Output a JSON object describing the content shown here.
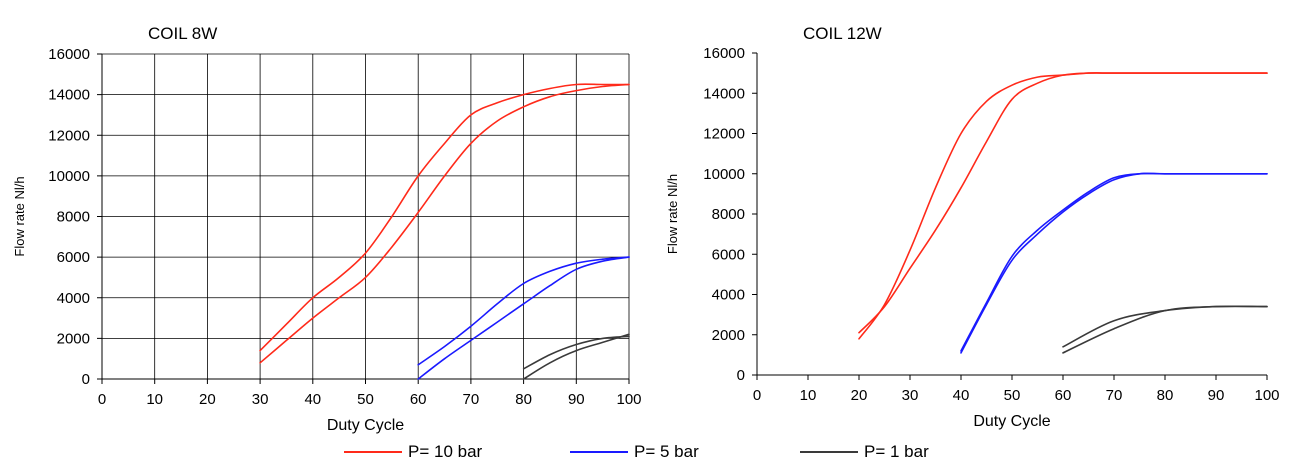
{
  "legend": [
    {
      "label": "P= 10 bar",
      "color": "#ff2a1a"
    },
    {
      "label": "P= 5 bar",
      "color": "#1a1aff"
    },
    {
      "label": "P= 1 bar",
      "color": "#3a3a3a"
    }
  ],
  "chart_data": [
    {
      "type": "line",
      "title": "COIL 8W",
      "xlabel": "Duty Cycle",
      "ylabel": "Flow rate Nl/h",
      "xlim": [
        0,
        100
      ],
      "ylim": [
        0,
        16000
      ],
      "xticks": [
        "0",
        "10",
        "20",
        "30",
        "40",
        "50",
        "60",
        "70",
        "80",
        "90",
        "100"
      ],
      "yticks": [
        "0",
        "2000",
        "4000",
        "6000",
        "8000",
        "10000",
        "12000",
        "14000",
        "16000"
      ],
      "grid": true,
      "series": [
        {
          "name": "P= 10 bar",
          "color": "#ff2a1a",
          "x": [
            30,
            35,
            40,
            45,
            50,
            55,
            60,
            65,
            70,
            75,
            80,
            85,
            90,
            95,
            100
          ],
          "y": [
            1400,
            2700,
            4000,
            5000,
            6200,
            8000,
            10000,
            11600,
            13000,
            13600,
            14000,
            14300,
            14500,
            14500,
            14500
          ]
        },
        {
          "name": "P= 10 bar",
          "color": "#ff2a1a",
          "x": [
            30,
            35,
            40,
            45,
            50,
            55,
            60,
            65,
            70,
            75,
            80,
            85,
            90,
            95,
            100
          ],
          "y": [
            800,
            1900,
            3000,
            4000,
            5000,
            6500,
            8200,
            10000,
            11600,
            12700,
            13400,
            13900,
            14200,
            14400,
            14500
          ]
        },
        {
          "name": "P= 5 bar",
          "color": "#1a1aff",
          "x": [
            60,
            65,
            70,
            75,
            80,
            85,
            90,
            95,
            100
          ],
          "y": [
            700,
            1600,
            2600,
            3700,
            4700,
            5300,
            5700,
            5900,
            6000
          ]
        },
        {
          "name": "P= 5 bar",
          "color": "#1a1aff",
          "x": [
            60,
            65,
            70,
            75,
            80,
            85,
            90,
            95,
            100
          ],
          "y": [
            0,
            1000,
            1900,
            2800,
            3700,
            4600,
            5400,
            5800,
            6000
          ]
        },
        {
          "name": "P= 1 bar",
          "color": "#3a3a3a",
          "x": [
            80,
            85,
            90,
            95,
            100
          ],
          "y": [
            500,
            1200,
            1700,
            2000,
            2100
          ]
        },
        {
          "name": "P= 1 bar",
          "color": "#3a3a3a",
          "x": [
            80,
            85,
            90,
            95,
            100
          ],
          "y": [
            0,
            800,
            1400,
            1800,
            2200
          ]
        }
      ]
    },
    {
      "type": "line",
      "title": "COIL 12W",
      "xlabel": "Duty Cycle",
      "ylabel": "Flow rate Nl/h",
      "xlim": [
        0,
        100
      ],
      "ylim": [
        0,
        16000
      ],
      "xticks": [
        "0",
        "10",
        "20",
        "30",
        "40",
        "50",
        "60",
        "70",
        "80",
        "90",
        "100"
      ],
      "yticks": [
        "0",
        "2000",
        "4000",
        "6000",
        "8000",
        "10000",
        "12000",
        "14000",
        "16000"
      ],
      "grid": false,
      "series": [
        {
          "name": "P= 10 bar",
          "color": "#ff2a1a",
          "x": [
            20,
            25,
            30,
            35,
            40,
            45,
            50,
            55,
            60,
            65,
            70,
            80,
            90,
            100
          ],
          "y": [
            1800,
            3500,
            6200,
            9300,
            12000,
            13600,
            14400,
            14800,
            14900,
            15000,
            15000,
            15000,
            15000,
            15000
          ]
        },
        {
          "name": "P= 10 bar",
          "color": "#ff2a1a",
          "x": [
            20,
            25,
            30,
            35,
            40,
            45,
            50,
            55,
            60,
            65,
            70,
            80,
            90,
            100
          ],
          "y": [
            2100,
            3400,
            5300,
            7200,
            9300,
            11600,
            13700,
            14500,
            14900,
            15000,
            15000,
            15000,
            15000,
            15000
          ]
        },
        {
          "name": "P= 5 bar",
          "color": "#1a1aff",
          "x": [
            40,
            45,
            50,
            55,
            60,
            65,
            70,
            75,
            80,
            90,
            100
          ],
          "y": [
            1200,
            3600,
            5900,
            7200,
            8200,
            9100,
            9800,
            10000,
            10000,
            10000,
            10000
          ]
        },
        {
          "name": "P= 5 bar",
          "color": "#1a1aff",
          "x": [
            40,
            45,
            50,
            55,
            60,
            65,
            70,
            75,
            80,
            90,
            100
          ],
          "y": [
            1100,
            3500,
            5700,
            7000,
            8100,
            9000,
            9700,
            10000,
            10000,
            10000,
            10000
          ]
        },
        {
          "name": "P= 1 bar",
          "color": "#3a3a3a",
          "x": [
            60,
            70,
            80,
            90,
            100
          ],
          "y": [
            1400,
            2700,
            3200,
            3400,
            3400
          ]
        },
        {
          "name": "P= 1 bar",
          "color": "#3a3a3a",
          "x": [
            60,
            70,
            80,
            90,
            100
          ],
          "y": [
            1100,
            2300,
            3200,
            3400,
            3400
          ]
        }
      ]
    }
  ]
}
